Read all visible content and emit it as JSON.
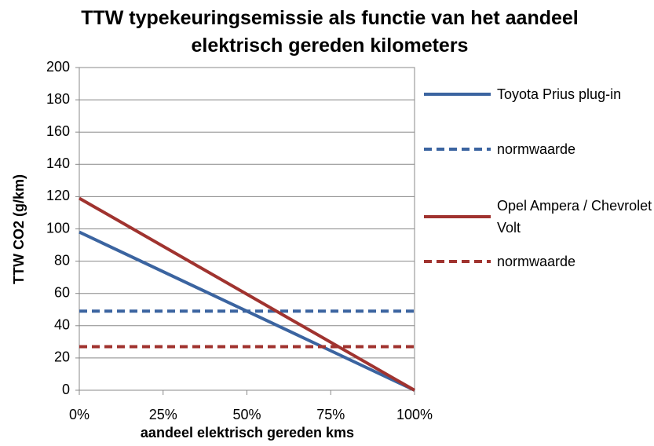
{
  "chart_data": {
    "type": "line",
    "title": "TTW typekeuringsemissie als functie van het aandeel elektrisch gereden kilometers",
    "x_label": "aandeel elektrisch gereden kms",
    "y_label": "TTW CO2 (g/km)",
    "x": [
      0,
      100
    ],
    "series": [
      {
        "name": "Toyota Prius plug-in",
        "color": "#3b64a0",
        "dashed": false,
        "values": [
          98,
          0
        ]
      },
      {
        "name": "normwaarde",
        "color": "#3b64a0",
        "dashed": true,
        "values": [
          49,
          49
        ]
      },
      {
        "name": "Opel Ampera / Chevrolet Volt",
        "color": "#a0332f",
        "dashed": false,
        "values": [
          119,
          0
        ]
      },
      {
        "name": "normwaarde",
        "color": "#a0332f",
        "dashed": true,
        "values": [
          27,
          27
        ]
      }
    ],
    "xlim": [
      0,
      100
    ],
    "xticks": [
      {
        "value": 0,
        "label": "0%"
      },
      {
        "value": 25,
        "label": "25%"
      },
      {
        "value": 50,
        "label": "50%"
      },
      {
        "value": 75,
        "label": "75%"
      },
      {
        "value": 100,
        "label": "100%"
      }
    ],
    "ylim": [
      0,
      200
    ],
    "yticks": [
      0,
      20,
      40,
      60,
      80,
      100,
      120,
      140,
      160,
      180,
      200
    ],
    "grid": true,
    "legend": "right"
  }
}
